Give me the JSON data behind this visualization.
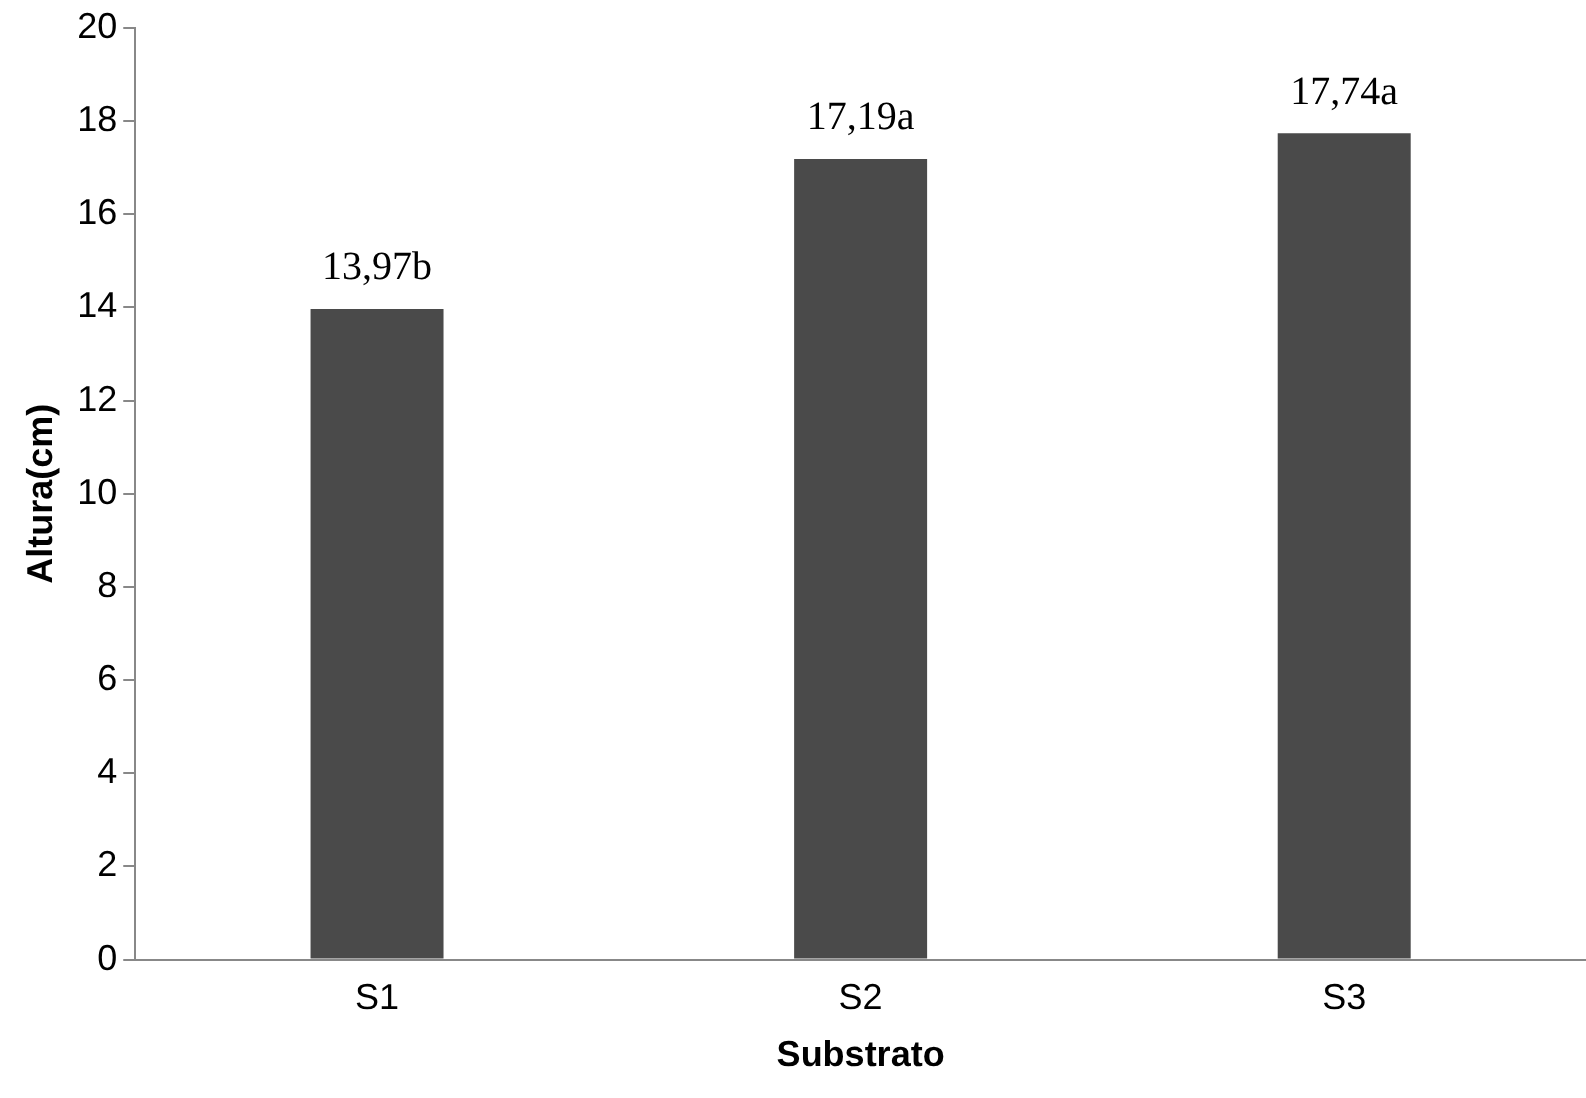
{
  "chart_data": {
    "type": "bar",
    "xlabel": "Substrato",
    "ylabel": "Altura(cm)",
    "categories": [
      "S1",
      "S2",
      "S3"
    ],
    "values": [
      13.97,
      17.19,
      17.74
    ],
    "value_labels": [
      "13,97b",
      "17,19a",
      "17,74a"
    ],
    "color": "#4a4a4a",
    "ylim": [
      0,
      20
    ],
    "yticks": [
      0,
      2,
      4,
      6,
      8,
      10,
      12,
      14,
      16,
      18,
      20
    ],
    "grid": false,
    "legend": false
  }
}
